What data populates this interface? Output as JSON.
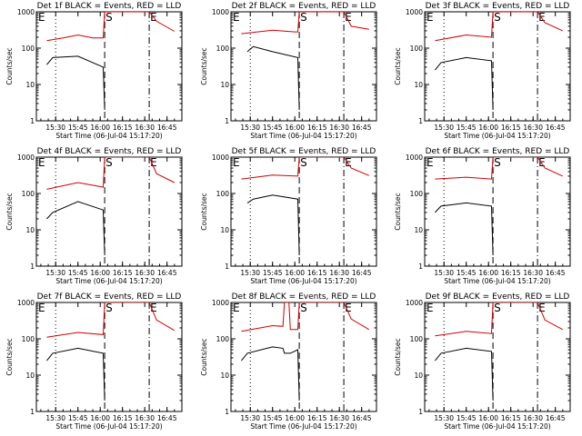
{
  "figure": {
    "colors": {
      "events": "#000000",
      "lld": "#d00000",
      "axes": "#000000"
    }
  },
  "chart_data": [
    {
      "type": "line",
      "title": "Det 1f BLACK = Events, RED = LLD",
      "xlabel": "Start Time (06-Jul-04 15:17:20)",
      "ylabel": "Counts/sec",
      "yscale": "log",
      "ylim": [
        1,
        1000
      ],
      "x_ticks": [
        "15:30",
        "15:45",
        "16:00",
        "16:15",
        "16:30",
        "16:45"
      ],
      "y_ticks": [
        "1",
        "10",
        "100",
        "1000"
      ],
      "markers": [
        {
          "label": "E",
          "time": "15:17"
        },
        {
          "label": "S",
          "time": "16:03"
        },
        {
          "label": "E",
          "time": "16:33"
        }
      ],
      "series": [
        {
          "color": "red",
          "points": [
            [
              "15:24",
              160
            ],
            [
              "15:35",
              190
            ],
            [
              "15:45",
              230
            ],
            [
              "15:55",
              190
            ],
            [
              "16:02",
              190
            ],
            [
              "16:03",
              1000
            ],
            [
              "16:33",
              1000
            ],
            [
              "16:38",
              550
            ],
            [
              "16:50",
              290
            ]
          ]
        },
        {
          "color": "black",
          "points": [
            [
              "15:24",
              35
            ],
            [
              "15:28",
              55
            ],
            [
              "15:45",
              60
            ],
            [
              "16:02",
              30
            ],
            [
              "16:03",
              2
            ]
          ]
        }
      ]
    },
    {
      "type": "line",
      "title": "Det 2f BLACK = Events, RED = LLD",
      "xlabel": "Start Time (06-Jul-04 15:17:20)",
      "ylabel": "Counts/sec",
      "yscale": "log",
      "ylim": [
        1,
        1000
      ],
      "x_ticks": [
        "15:30",
        "15:45",
        "16:00",
        "16:15",
        "16:30",
        "16:45"
      ],
      "y_ticks": [
        "1",
        "10",
        "100",
        "1000"
      ],
      "markers": [
        {
          "label": "E",
          "time": "15:17"
        },
        {
          "label": "S",
          "time": "16:03"
        },
        {
          "label": "E",
          "time": "16:33"
        }
      ],
      "series": [
        {
          "color": "red",
          "points": [
            [
              "15:24",
              250
            ],
            [
              "15:45",
              310
            ],
            [
              "16:00",
              280
            ],
            [
              "16:02",
              280
            ],
            [
              "16:03",
              1000
            ],
            [
              "16:33",
              1000
            ],
            [
              "16:38",
              400
            ],
            [
              "16:50",
              330
            ]
          ]
        },
        {
          "color": "black",
          "points": [
            [
              "15:28",
              80
            ],
            [
              "15:32",
              110
            ],
            [
              "15:45",
              80
            ],
            [
              "16:02",
              55
            ],
            [
              "16:03",
              2
            ]
          ]
        }
      ]
    },
    {
      "type": "line",
      "title": "Det 3f BLACK = Events, RED = LLD",
      "xlabel": "Start Time (06-Jul-04 15:17:20)",
      "ylabel": "Counts/sec",
      "yscale": "log",
      "ylim": [
        1,
        1000
      ],
      "x_ticks": [
        "15:30",
        "15:45",
        "16:00",
        "16:15",
        "16:30",
        "16:45"
      ],
      "y_ticks": [
        "1",
        "10",
        "100",
        "1000"
      ],
      "markers": [
        {
          "label": "E",
          "time": "15:17"
        },
        {
          "label": "S",
          "time": "16:03"
        },
        {
          "label": "E",
          "time": "16:33"
        }
      ],
      "series": [
        {
          "color": "red",
          "points": [
            [
              "15:24",
              160
            ],
            [
              "15:45",
              230
            ],
            [
              "16:02",
              200
            ],
            [
              "16:03",
              1000
            ],
            [
              "16:33",
              1000
            ],
            [
              "16:38",
              500
            ],
            [
              "16:50",
              300
            ]
          ]
        },
        {
          "color": "black",
          "points": [
            [
              "15:24",
              25
            ],
            [
              "15:28",
              40
            ],
            [
              "15:45",
              55
            ],
            [
              "16:02",
              45
            ],
            [
              "16:03",
              2
            ]
          ]
        }
      ]
    },
    {
      "type": "line",
      "title": "Det 4f BLACK = Events, RED = LLD",
      "xlabel": "Start Time (06-Jul-04 15:17:20)",
      "ylabel": "Counts/sec",
      "yscale": "log",
      "ylim": [
        1,
        1000
      ],
      "x_ticks": [
        "15:30",
        "15:45",
        "16:00",
        "16:15",
        "16:30",
        "16:45"
      ],
      "y_ticks": [
        "1",
        "10",
        "100",
        "1000"
      ],
      "markers": [
        {
          "label": "E",
          "time": "15:17"
        },
        {
          "label": "S",
          "time": "16:03"
        },
        {
          "label": "E",
          "time": "16:33"
        }
      ],
      "series": [
        {
          "color": "red",
          "points": [
            [
              "15:24",
              130
            ],
            [
              "15:45",
              200
            ],
            [
              "16:02",
              150
            ],
            [
              "16:03",
              1000
            ],
            [
              "16:33",
              1000
            ],
            [
              "16:38",
              350
            ],
            [
              "16:50",
              200
            ]
          ]
        },
        {
          "color": "black",
          "points": [
            [
              "15:24",
              20
            ],
            [
              "15:28",
              30
            ],
            [
              "15:45",
              60
            ],
            [
              "16:02",
              35
            ],
            [
              "16:03",
              2
            ]
          ]
        }
      ]
    },
    {
      "type": "line",
      "title": "Det 5f BLACK = Events, RED = LLD",
      "xlabel": "Start Time (06-Jul-04 15:17:20)",
      "ylabel": "Counts/sec",
      "yscale": "log",
      "ylim": [
        1,
        1000
      ],
      "x_ticks": [
        "15:30",
        "15:45",
        "16:00",
        "16:15",
        "16:30",
        "16:45"
      ],
      "y_ticks": [
        "1",
        "10",
        "100",
        "1000"
      ],
      "markers": [
        {
          "label": "E",
          "time": "15:17"
        },
        {
          "label": "S",
          "time": "16:03"
        },
        {
          "label": "E",
          "time": "16:33"
        }
      ],
      "series": [
        {
          "color": "red",
          "points": [
            [
              "15:24",
              250
            ],
            [
              "15:45",
              320
            ],
            [
              "16:02",
              300
            ],
            [
              "16:03",
              1000
            ],
            [
              "16:33",
              1000
            ],
            [
              "16:38",
              500
            ],
            [
              "16:50",
              310
            ]
          ]
        },
        {
          "color": "black",
          "points": [
            [
              "15:28",
              55
            ],
            [
              "15:32",
              70
            ],
            [
              "15:45",
              90
            ],
            [
              "16:02",
              70
            ],
            [
              "16:03",
              2
            ]
          ]
        }
      ]
    },
    {
      "type": "line",
      "title": "Det 6f BLACK = Events, RED = LLD",
      "xlabel": "Start Time (06-Jul-04 15:17:20)",
      "ylabel": "Counts/sec",
      "yscale": "log",
      "ylim": [
        1,
        1000
      ],
      "x_ticks": [
        "15:30",
        "15:45",
        "16:00",
        "16:15",
        "16:30",
        "16:45"
      ],
      "y_ticks": [
        "1",
        "10",
        "100",
        "1000"
      ],
      "markers": [
        {
          "label": "E",
          "time": "15:17"
        },
        {
          "label": "S",
          "time": "16:03"
        },
        {
          "label": "E",
          "time": "16:33"
        }
      ],
      "series": [
        {
          "color": "red",
          "points": [
            [
              "15:24",
              250
            ],
            [
              "15:45",
              280
            ],
            [
              "16:02",
              250
            ],
            [
              "16:03",
              1000
            ],
            [
              "16:33",
              1000
            ],
            [
              "16:38",
              500
            ],
            [
              "16:50",
              300
            ]
          ]
        },
        {
          "color": "black",
          "points": [
            [
              "15:24",
              30
            ],
            [
              "15:28",
              45
            ],
            [
              "15:45",
              55
            ],
            [
              "16:02",
              45
            ],
            [
              "16:03",
              2
            ]
          ]
        }
      ]
    },
    {
      "type": "line",
      "title": "Det 7f BLACK = Events, RED = LLD",
      "xlabel": "Start Time (06-Jul-04 15:17:20)",
      "ylabel": "Counts/sec",
      "yscale": "log",
      "ylim": [
        1,
        1000
      ],
      "x_ticks": [
        "15:30",
        "15:45",
        "16:00",
        "16:15",
        "16:30",
        "16:45"
      ],
      "y_ticks": [
        "1",
        "10",
        "100",
        "1000"
      ],
      "markers": [
        {
          "label": "E",
          "time": "15:17"
        },
        {
          "label": "S",
          "time": "16:03"
        },
        {
          "label": "E",
          "time": "16:33"
        }
      ],
      "series": [
        {
          "color": "red",
          "points": [
            [
              "15:24",
              110
            ],
            [
              "15:45",
              150
            ],
            [
              "16:02",
              130
            ],
            [
              "16:03",
              1000
            ],
            [
              "16:33",
              1000
            ],
            [
              "16:38",
              330
            ],
            [
              "16:50",
              170
            ]
          ]
        },
        {
          "color": "black",
          "points": [
            [
              "15:24",
              25
            ],
            [
              "15:28",
              40
            ],
            [
              "15:45",
              55
            ],
            [
              "16:02",
              40
            ],
            [
              "16:03",
              2
            ]
          ]
        }
      ]
    },
    {
      "type": "line",
      "title": "Det 8f BLACK = Events, RED = LLD",
      "xlabel": "Start Time (06-Jul-04 15:17:20)",
      "ylabel": "Counts/sec",
      "yscale": "log",
      "ylim": [
        1,
        1000
      ],
      "x_ticks": [
        "15:30",
        "15:45",
        "16:00",
        "16:15",
        "16:30",
        "16:45"
      ],
      "y_ticks": [
        "1",
        "10",
        "100",
        "1000"
      ],
      "markers": [
        {
          "label": "E",
          "time": "15:17"
        },
        {
          "label": "S",
          "time": "16:03"
        },
        {
          "label": "E",
          "time": "16:33"
        }
      ],
      "series": [
        {
          "color": "red",
          "points": [
            [
              "15:24",
              160
            ],
            [
              "15:45",
              230
            ],
            [
              "15:52",
              220
            ],
            [
              "15:53",
              1000
            ],
            [
              "15:56",
              1000
            ],
            [
              "15:57",
              180
            ],
            [
              "16:02",
              180
            ],
            [
              "16:03",
              1000
            ],
            [
              "16:33",
              1000
            ],
            [
              "16:38",
              350
            ],
            [
              "16:50",
              180
            ]
          ]
        },
        {
          "color": "black",
          "points": [
            [
              "15:24",
              25
            ],
            [
              "15:28",
              40
            ],
            [
              "15:45",
              60
            ],
            [
              "15:52",
              55
            ],
            [
              "15:53",
              40
            ],
            [
              "15:57",
              40
            ],
            [
              "16:02",
              50
            ],
            [
              "16:03",
              2
            ]
          ]
        }
      ]
    },
    {
      "type": "line",
      "title": "Det 9f BLACK = Events, RED = LLD",
      "xlabel": "Start Time (06-Jul-04 15:17:20)",
      "ylabel": "Counts/sec",
      "yscale": "log",
      "ylim": [
        1,
        1000
      ],
      "x_ticks": [
        "15:30",
        "15:45",
        "16:00",
        "16:15",
        "16:30",
        "16:45"
      ],
      "y_ticks": [
        "1",
        "10",
        "100",
        "1000"
      ],
      "markers": [
        {
          "label": "E",
          "time": "15:17"
        },
        {
          "label": "S",
          "time": "16:03"
        },
        {
          "label": "E",
          "time": "16:33"
        }
      ],
      "series": [
        {
          "color": "red",
          "points": [
            [
              "15:24",
              120
            ],
            [
              "15:45",
              160
            ],
            [
              "16:02",
              140
            ],
            [
              "16:03",
              1000
            ],
            [
              "16:33",
              1000
            ],
            [
              "16:38",
              330
            ],
            [
              "16:50",
              180
            ]
          ]
        },
        {
          "color": "black",
          "points": [
            [
              "15:24",
              25
            ],
            [
              "15:28",
              40
            ],
            [
              "15:45",
              55
            ],
            [
              "16:02",
              45
            ],
            [
              "16:03",
              2
            ]
          ]
        }
      ]
    }
  ]
}
